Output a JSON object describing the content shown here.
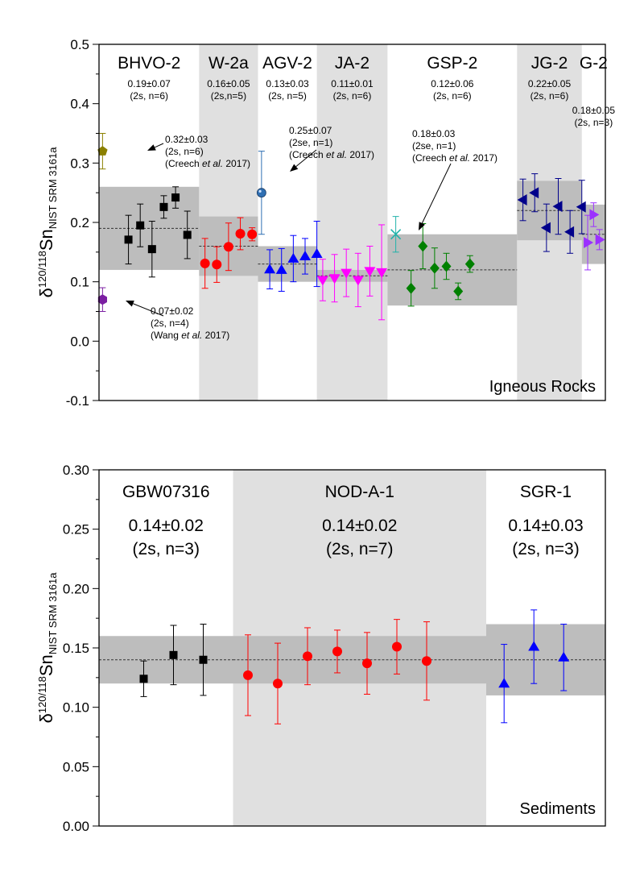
{
  "chart_data": [
    {
      "type": "scatter",
      "panel_label": "Igneous Rocks",
      "ylabel": {
        "prefix": "δ",
        "sup": "120/118",
        "main": "Sn",
        "sub": "NIST SRM 3161a"
      },
      "ylim": [
        -0.1,
        0.5
      ],
      "yticks": [
        -0.1,
        0.0,
        0.1,
        0.2,
        0.3,
        0.4,
        0.5
      ],
      "ytick_labels": [
        "-0.1",
        "0.0",
        "0.1",
        "0.2",
        "0.3",
        "0.4",
        "0.5"
      ],
      "x_slots": 43,
      "groups": [
        {
          "name": "BHVO-2",
          "mean_label": "0.19±0.07",
          "stat_label": "(2s, n=6)",
          "mean": 0.19,
          "band": [
            0.12,
            0.26
          ],
          "x_range": [
            0,
            8.5
          ],
          "shaded_bg": false,
          "color": "#000000",
          "marker": "square",
          "points": [
            {
              "x": 2.5,
              "y": 0.171,
              "err": 0.041
            },
            {
              "x": 3.5,
              "y": 0.195,
              "err": 0.036
            },
            {
              "x": 4.5,
              "y": 0.155,
              "err": 0.047
            },
            {
              "x": 5.5,
              "y": 0.226,
              "err": 0.019
            },
            {
              "x": 6.5,
              "y": 0.242,
              "err": 0.018
            },
            {
              "x": 7.5,
              "y": 0.179,
              "err": 0.04
            }
          ]
        },
        {
          "name": "W-2a",
          "mean_label": "0.16±0.05",
          "stat_label": "(2s,n=5)",
          "mean": 0.16,
          "band": [
            0.11,
            0.21
          ],
          "x_range": [
            8.5,
            13.5
          ],
          "shaded_bg": true,
          "color": "#ff0000",
          "marker": "circle",
          "points": [
            {
              "x": 9.0,
              "y": 0.131,
              "err": 0.042
            },
            {
              "x": 10.0,
              "y": 0.129,
              "err": 0.03
            },
            {
              "x": 11.0,
              "y": 0.159,
              "err": 0.04
            },
            {
              "x": 12.0,
              "y": 0.181,
              "err": 0.027
            },
            {
              "x": 13.0,
              "y": 0.18,
              "err": 0.011
            }
          ]
        },
        {
          "name": "AGV-2",
          "mean_label": "0.13±0.03",
          "stat_label": "(2s, n=5)",
          "mean": 0.13,
          "band": [
            0.1,
            0.16
          ],
          "x_range": [
            13.5,
            18.5
          ],
          "shaded_bg": false,
          "color": "#0000ff",
          "marker": "triangle-up",
          "points": [
            {
              "x": 14.5,
              "y": 0.121,
              "err": 0.033
            },
            {
              "x": 15.5,
              "y": 0.12,
              "err": 0.036
            },
            {
              "x": 16.5,
              "y": 0.139,
              "err": 0.039
            },
            {
              "x": 17.5,
              "y": 0.143,
              "err": 0.03
            },
            {
              "x": 18.5,
              "y": 0.147,
              "err": 0.055
            }
          ]
        },
        {
          "name": "JA-2",
          "mean_label": "0.11±0.01",
          "stat_label": "(2s, n=6)",
          "mean": 0.11,
          "band": [
            0.1,
            0.12
          ],
          "x_range": [
            18.5,
            24.5
          ],
          "shaded_bg": true,
          "color": "#ff00ff",
          "marker": "triangle-down",
          "points": [
            {
              "x": 19.0,
              "y": 0.103,
              "err": 0.035
            },
            {
              "x": 20.0,
              "y": 0.106,
              "err": 0.04
            },
            {
              "x": 21.0,
              "y": 0.115,
              "err": 0.04
            },
            {
              "x": 22.0,
              "y": 0.103,
              "err": 0.045
            },
            {
              "x": 23.0,
              "y": 0.118,
              "err": 0.042
            },
            {
              "x": 24.0,
              "y": 0.116,
              "err": 0.08
            }
          ]
        },
        {
          "name": "GSP-2",
          "mean_label": "0.12±0.06",
          "stat_label": "(2s, n=6)",
          "mean": 0.12,
          "band": [
            0.06,
            0.18
          ],
          "x_range": [
            24.5,
            35.5
          ],
          "shaded_bg": false,
          "color": "#008000",
          "marker": "diamond",
          "points": [
            {
              "x": 26.5,
              "y": 0.089,
              "err": 0.03
            },
            {
              "x": 27.5,
              "y": 0.16,
              "err": 0.038
            },
            {
              "x": 28.5,
              "y": 0.123,
              "err": 0.034
            },
            {
              "x": 29.5,
              "y": 0.126,
              "err": 0.022
            },
            {
              "x": 30.5,
              "y": 0.084,
              "err": 0.014
            },
            {
              "x": 31.5,
              "y": 0.13,
              "err": 0.014
            }
          ]
        },
        {
          "name": "JG-2",
          "mean_label": "0.22±0.05",
          "stat_label": "(2s, n=6)",
          "mean": 0.22,
          "band": [
            0.17,
            0.27
          ],
          "x_range": [
            35.5,
            41.0
          ],
          "shaded_bg": true,
          "color": "#00008b",
          "marker": "triangle-left",
          "points": [
            {
              "x": 36.0,
              "y": 0.238,
              "err": 0.035
            },
            {
              "x": 37.0,
              "y": 0.25,
              "err": 0.032
            },
            {
              "x": 38.0,
              "y": 0.191,
              "err": 0.04
            },
            {
              "x": 39.0,
              "y": 0.227,
              "err": 0.047
            },
            {
              "x": 40.0,
              "y": 0.184,
              "err": 0.036
            },
            {
              "x": 41.0,
              "y": 0.226,
              "err": 0.045
            }
          ]
        },
        {
          "name": "G-2",
          "mean_label": "0.18±0.05",
          "stat_label": "(2s, n=3)",
          "mean": 0.18,
          "band": [
            0.13,
            0.23
          ],
          "x_range": [
            41.0,
            43.0
          ],
          "shaded_bg": false,
          "color": "#9b30ff",
          "marker": "triangle-right",
          "points": [
            {
              "x": 41.5,
              "y": 0.166,
              "err": 0.046
            },
            {
              "x": 42.0,
              "y": 0.213,
              "err": 0.02
            },
            {
              "x": 42.5,
              "y": 0.171,
              "err": 0.017
            }
          ]
        }
      ],
      "references": [
        {
          "group": "BHVO-2",
          "x": 0.3,
          "y": 0.32,
          "err": 0.03,
          "color": "#8b8000",
          "marker": "pentagon",
          "lines": [
            "0.32±0.03",
            "(2s, n=6)"
          ],
          "citation": {
            "pre": "(Creech ",
            "em": "et al.",
            "post": " 2017)"
          }
        },
        {
          "group": "BHVO-2",
          "x": 0.3,
          "y": 0.07,
          "err": 0.02,
          "color": "#7b1fa2",
          "marker": "hexagon",
          "lines": [
            "0.07±0.02",
            "(2s, n=4)"
          ],
          "citation": {
            "pre": "(Wang ",
            "em": "et al.",
            "post": " 2017)"
          }
        },
        {
          "group": "AGV-2",
          "x": 13.8,
          "y": 0.25,
          "err": 0.07,
          "color": "#2f6fb3",
          "marker": "sphere",
          "lines": [
            "0.25±0.07",
            "(2se, n=1)"
          ],
          "citation": {
            "pre": "(Creech ",
            "em": "et al.",
            "post": " 2017)"
          }
        },
        {
          "group": "GSP-2",
          "x": 25.2,
          "y": 0.18,
          "err": 0.03,
          "color": "#20b2aa",
          "marker": "cross",
          "lines": [
            "0.18±0.03",
            "(2se, n=1)"
          ],
          "citation": {
            "pre": "(Creech ",
            "em": "et al.",
            "post": " 2017)"
          }
        }
      ]
    },
    {
      "type": "scatter",
      "panel_label": "Sediments",
      "ylabel": {
        "prefix": "δ",
        "sup": "120/118",
        "main": "Sn",
        "sub": "NIST SRM 3161a"
      },
      "ylim": [
        0.0,
        0.3
      ],
      "yticks": [
        0.0,
        0.05,
        0.1,
        0.15,
        0.2,
        0.25,
        0.3
      ],
      "ytick_labels": [
        "0.00",
        "0.05",
        "0.10",
        "0.15",
        "0.20",
        "0.25",
        "0.30"
      ],
      "x_slots": 17,
      "groups": [
        {
          "name": "GBW07316",
          "mean_label": "0.14±0.02",
          "stat_label": "(2s, n=3)",
          "mean": 0.14,
          "band": [
            0.12,
            0.16
          ],
          "x_range": [
            0,
            4.5
          ],
          "shaded_bg": false,
          "color": "#000000",
          "marker": "square",
          "points": [
            {
              "x": 1.5,
              "y": 0.124,
              "err": 0.015
            },
            {
              "x": 2.5,
              "y": 0.144,
              "err": 0.025
            },
            {
              "x": 3.5,
              "y": 0.14,
              "err": 0.03
            }
          ]
        },
        {
          "name": "NOD-A-1",
          "mean_label": "0.14±0.02",
          "stat_label": "(2s, n=7)",
          "mean": 0.14,
          "band": [
            0.12,
            0.16
          ],
          "x_range": [
            4.5,
            13.0
          ],
          "shaded_bg": true,
          "color": "#ff0000",
          "marker": "circle",
          "points": [
            {
              "x": 5.0,
              "y": 0.127,
              "err": 0.034
            },
            {
              "x": 6.0,
              "y": 0.12,
              "err": 0.034
            },
            {
              "x": 7.0,
              "y": 0.143,
              "err": 0.024
            },
            {
              "x": 8.0,
              "y": 0.147,
              "err": 0.018
            },
            {
              "x": 9.0,
              "y": 0.137,
              "err": 0.026
            },
            {
              "x": 10.0,
              "y": 0.151,
              "err": 0.023
            },
            {
              "x": 11.0,
              "y": 0.139,
              "err": 0.033
            }
          ]
        },
        {
          "name": "SGR-1",
          "mean_label": "0.14±0.03",
          "stat_label": "(2s, n=3)",
          "mean": 0.14,
          "band": [
            0.11,
            0.17
          ],
          "x_range": [
            13.0,
            17.0
          ],
          "shaded_bg": false,
          "color": "#0000ff",
          "marker": "triangle-up",
          "points": [
            {
              "x": 13.6,
              "y": 0.12,
              "err": 0.033
            },
            {
              "x": 14.6,
              "y": 0.151,
              "err": 0.031
            },
            {
              "x": 15.6,
              "y": 0.142,
              "err": 0.028
            }
          ]
        }
      ],
      "references": []
    }
  ]
}
